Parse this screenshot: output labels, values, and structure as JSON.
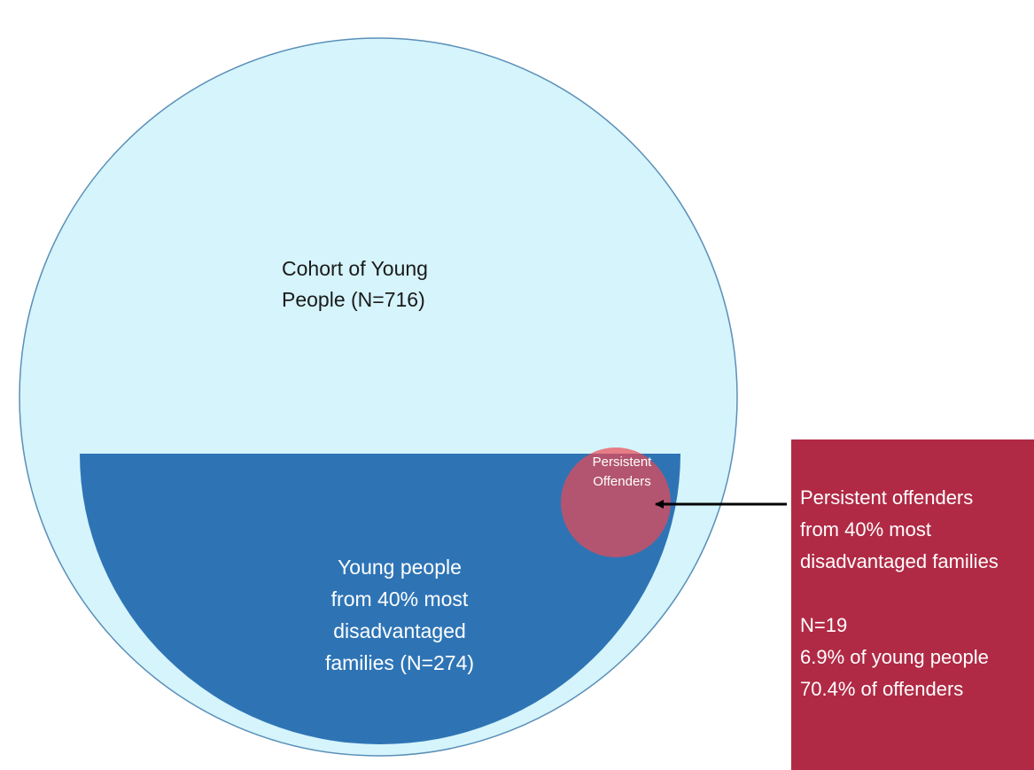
{
  "cohort": {
    "label": [
      "Cohort of Young",
      "People (N=716)"
    ]
  },
  "disadvantaged": {
    "label": [
      "Young people",
      "from 40% most",
      "disadvantaged",
      "families (N=274)"
    ]
  },
  "persistent": {
    "label": [
      "Persistent",
      "Offenders"
    ]
  },
  "callout": {
    "lines": [
      "Persistent offenders",
      "from 40% most",
      "disadvantaged families",
      "N=19",
      "6.9% of young people",
      "70.4% of offenders"
    ]
  }
}
